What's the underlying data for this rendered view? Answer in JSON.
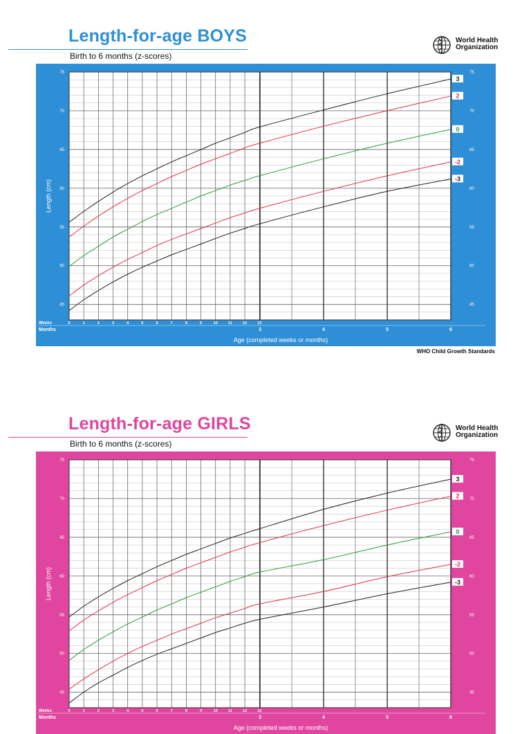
{
  "boys": {
    "title": "Length-for-age BOYS",
    "subtitle": "Birth to 6 months (z-scores)",
    "accent": "#2f8fd6",
    "title_color": "#2f8fd6",
    "footer": "WHO Child Growth Standards"
  },
  "girls": {
    "title": "Length-for-age GIRLS",
    "subtitle": "Birth to 6 months (z-scores)",
    "accent": "#e0469f",
    "title_color": "#e0469f"
  },
  "who": {
    "line1": "World Health",
    "line2": "Organization"
  },
  "chart_data": [
    {
      "type": "line",
      "title": "Length-for-age BOYS",
      "subtitle": "Birth to 6 months (z-scores)",
      "xlabel": "Age (completed weeks or months)",
      "ylabel": "Length (cm)",
      "xlim": [
        0,
        26.07
      ],
      "ylim": [
        43.0,
        75
      ],
      "y_ticks": [
        45,
        50,
        55,
        60,
        65,
        70,
        75
      ],
      "week_ticks": [
        0,
        1,
        2,
        3,
        4,
        5,
        6,
        7,
        8,
        9,
        10,
        11,
        12,
        13
      ],
      "week_row_label": "Weeks",
      "month_row_label": "Months",
      "month_ticks": [
        {
          "label": "3",
          "x": 13.04
        },
        {
          "label": "4",
          "x": 17.38
        },
        {
          "label": "5",
          "x": 21.73
        },
        {
          "label": "6",
          "x": 26.07
        }
      ],
      "x": [
        0,
        1,
        2,
        3,
        4,
        5,
        6,
        7,
        8,
        9,
        10,
        11,
        12,
        13,
        17.38,
        21.73,
        26.07
      ],
      "series": [
        {
          "name": "3",
          "color": "#222222",
          "values": [
            55.6,
            57.0,
            58.3,
            59.5,
            60.6,
            61.6,
            62.5,
            63.4,
            64.2,
            65.0,
            65.8,
            66.5,
            67.2,
            67.9,
            70.1,
            72.2,
            74.1
          ]
        },
        {
          "name": "2",
          "color": "#e0304a",
          "values": [
            53.7,
            55.1,
            56.4,
            57.6,
            58.7,
            59.7,
            60.6,
            61.5,
            62.3,
            63.1,
            63.8,
            64.5,
            65.2,
            65.8,
            68.0,
            70.0,
            71.9
          ]
        },
        {
          "name": "0",
          "color": "#2a9a3a",
          "values": [
            49.9,
            51.3,
            52.5,
            53.7,
            54.7,
            55.7,
            56.6,
            57.4,
            58.2,
            59.0,
            59.7,
            60.4,
            61.0,
            61.6,
            63.8,
            65.8,
            67.6
          ]
        },
        {
          "name": "-2",
          "color": "#e0304a",
          "values": [
            46.1,
            47.5,
            48.7,
            49.8,
            50.8,
            51.7,
            52.6,
            53.4,
            54.1,
            54.8,
            55.5,
            56.2,
            56.8,
            57.4,
            59.6,
            61.6,
            63.4
          ]
        },
        {
          "name": "-3",
          "color": "#222222",
          "values": [
            44.2,
            45.6,
            46.8,
            47.9,
            48.9,
            49.8,
            50.6,
            51.4,
            52.1,
            52.8,
            53.5,
            54.2,
            54.8,
            55.4,
            57.6,
            59.6,
            61.2
          ]
        }
      ]
    },
    {
      "type": "line",
      "title": "Length-for-age GIRLS",
      "subtitle": "Birth to 6 months (z-scores)",
      "xlabel": "Age (completed weeks or months)",
      "ylabel": "Length (cm)",
      "xlim": [
        0,
        26.07
      ],
      "ylim": [
        43.0,
        75
      ],
      "y_ticks": [
        45,
        50,
        55,
        60,
        65,
        70,
        75
      ],
      "week_ticks": [
        0,
        1,
        2,
        3,
        4,
        5,
        6,
        7,
        8,
        9,
        10,
        11,
        12,
        13
      ],
      "week_row_label": "Weeks",
      "month_row_label": "Months",
      "month_ticks": [
        {
          "label": "3",
          "x": 13.04
        },
        {
          "label": "4",
          "x": 17.38
        },
        {
          "label": "5",
          "x": 21.73
        },
        {
          "label": "6",
          "x": 26.07
        }
      ],
      "x": [
        0,
        1,
        2,
        3,
        4,
        5,
        6,
        7,
        8,
        9,
        10,
        11,
        12,
        13,
        17.38,
        21.73,
        26.07
      ],
      "series": [
        {
          "name": "3",
          "color": "#222222",
          "values": [
            54.7,
            56.1,
            57.3,
            58.4,
            59.4,
            60.3,
            61.2,
            62.0,
            62.8,
            63.5,
            64.2,
            64.9,
            65.5,
            66.1,
            68.6,
            70.7,
            72.5
          ]
        },
        {
          "name": "2",
          "color": "#e0304a",
          "values": [
            52.9,
            54.3,
            55.5,
            56.6,
            57.6,
            58.5,
            59.4,
            60.2,
            61.0,
            61.7,
            62.4,
            63.1,
            63.7,
            64.3,
            66.5,
            68.5,
            70.3
          ]
        },
        {
          "name": "0",
          "color": "#2a9a3a",
          "values": [
            49.1,
            50.5,
            51.7,
            52.8,
            53.8,
            54.7,
            55.6,
            56.4,
            57.2,
            57.9,
            58.6,
            59.3,
            59.9,
            60.5,
            62.1,
            64.0,
            65.7
          ]
        },
        {
          "name": "-2",
          "color": "#e0304a",
          "values": [
            45.4,
            46.7,
            47.9,
            49.0,
            50.0,
            50.9,
            51.7,
            52.5,
            53.2,
            53.9,
            54.6,
            55.2,
            55.8,
            56.4,
            58.0,
            59.9,
            61.5
          ]
        },
        {
          "name": "-3",
          "color": "#222222",
          "values": [
            43.6,
            45.0,
            46.2,
            47.2,
            48.2,
            49.1,
            49.9,
            50.6,
            51.3,
            52.0,
            52.7,
            53.3,
            53.9,
            54.4,
            56.0,
            57.7,
            59.2
          ]
        }
      ]
    }
  ]
}
